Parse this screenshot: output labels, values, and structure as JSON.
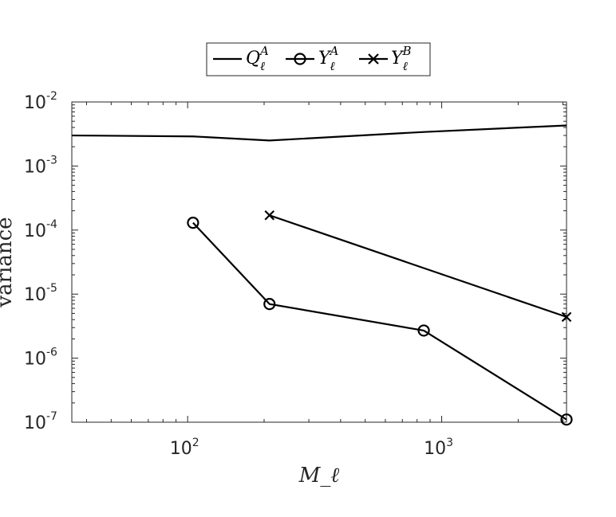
{
  "chart_data": {
    "type": "line",
    "xscale": "log",
    "yscale": "log",
    "xlim": [
      35,
      3100
    ],
    "ylim": [
      1e-07,
      0.01
    ],
    "xlabel": "M_ℓ",
    "ylabel": "variance",
    "grid": false,
    "legend_position": "top-center, outside, horizontal",
    "x_ticks": [
      {
        "value": 100,
        "base": "10",
        "exp": "2"
      },
      {
        "value": 1000,
        "base": "10",
        "exp": "3"
      }
    ],
    "y_ticks": [
      {
        "value": 1e-07,
        "base": "10",
        "exp": "-7"
      },
      {
        "value": 1e-06,
        "base": "10",
        "exp": "-6"
      },
      {
        "value": 1e-05,
        "base": "10",
        "exp": "-5"
      },
      {
        "value": 0.0001,
        "base": "10",
        "exp": "-4"
      },
      {
        "value": 0.001,
        "base": "10",
        "exp": "-3"
      },
      {
        "value": 0.01,
        "base": "10",
        "exp": "-2"
      }
    ],
    "series": [
      {
        "name": "Q_ℓ^A",
        "marker": "none",
        "color": "#000000",
        "x": [
          35,
          105,
          210,
          850,
          3100
        ],
        "y": [
          0.003,
          0.0029,
          0.0025,
          0.0034,
          0.0043
        ]
      },
      {
        "name": "Y_ℓ^A",
        "marker": "circle",
        "color": "#000000",
        "x": [
          105,
          210,
          850,
          3100
        ],
        "y": [
          0.00013,
          7e-06,
          2.7e-06,
          1.1e-07
        ]
      },
      {
        "name": "Y_ℓ^B",
        "marker": "cross",
        "color": "#000000",
        "x": [
          210,
          3100
        ],
        "y": [
          0.00017,
          4.4e-06
        ]
      }
    ]
  },
  "legend": {
    "entries": [
      {
        "base": "Q",
        "sub": "ℓ",
        "sup": "A"
      },
      {
        "base": "Y",
        "sub": "ℓ",
        "sup": "A"
      },
      {
        "base": "Y",
        "sub": "ℓ",
        "sup": "B"
      }
    ]
  }
}
